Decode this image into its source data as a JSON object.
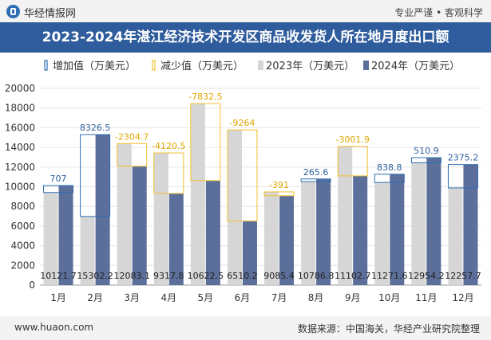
{
  "header": {
    "brand": "华经情报网",
    "tagline": "专业严谨 • 客观科学"
  },
  "title": "2023-2024年湛江经济技术开发区商品收发货人所在地月度出口额",
  "footer": {
    "website": "www.huaon.com",
    "source": "数据来源：中国海关，华经产业研究院整理"
  },
  "colors": {
    "series_2023": "#d6d6d6",
    "series_2024": "#5b6f9a",
    "increase": "#2e6db4",
    "decrease": "#f2c12e",
    "title_bg": "#2f5c9c"
  },
  "chart_data": {
    "type": "bar",
    "categories": [
      "1月",
      "2月",
      "3月",
      "4月",
      "5月",
      "6月",
      "7月",
      "8月",
      "9月",
      "10月",
      "11月",
      "12月"
    ],
    "legend": [
      "增加值（万美元）",
      "减少值（万美元）",
      "2023年（万美元）",
      "2024年（万美元）"
    ],
    "series": [
      {
        "name": "2023年（万美元）",
        "values": [
          9414.7,
          6975.7,
          14387.8,
          13438.3,
          18455.0,
          15774.2,
          9476.4,
          10521.2,
          14104.6,
          10432.8,
          12443.3,
          9882.5
        ]
      },
      {
        "name": "2024年（万美元）",
        "values": [
          10121.7,
          15302.2,
          12083.1,
          9317.8,
          10622.5,
          6510.2,
          9085.4,
          10786.8,
          11102.7,
          11271.6,
          12954.2,
          12257.7
        ]
      }
    ],
    "changes": [
      707,
      8326.5,
      -2304.7,
      -4120.5,
      -7832.5,
      -9264,
      -391,
      265.6,
      -3001.9,
      838.8,
      510.9,
      2375.2
    ],
    "change_labels": [
      "707",
      "8326.5",
      "-2304.7",
      "-4120.5",
      "-7832.5",
      "-9264",
      "-391",
      "265.6",
      "-3001.9",
      "838.8",
      "510.9",
      "2375.2"
    ],
    "value_labels_2024": [
      "10121.7",
      "15302.2",
      "12083.1",
      "9317.8",
      "10622.5",
      "6510.2",
      "9085.4",
      "10786.8",
      "11102.7",
      "11271.6",
      "12954.2",
      "12257.7"
    ],
    "yticks": [
      "0",
      "2000",
      "4000",
      "6000",
      "8000",
      "10000",
      "12000",
      "14000",
      "16000",
      "18000",
      "20000"
    ],
    "ylim": [
      0,
      20000
    ],
    "legend_position": "top-left"
  }
}
